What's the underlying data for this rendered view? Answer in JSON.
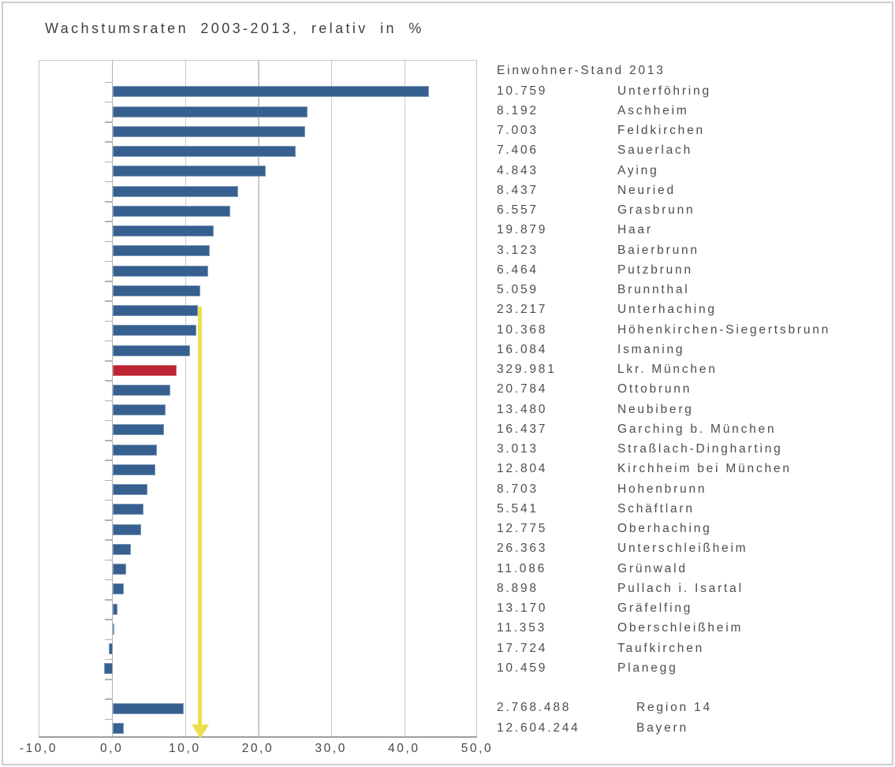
{
  "chart_data": {
    "type": "bar",
    "orientation": "horizontal",
    "title": "Wachstumsraten 2003-2013, relativ in %",
    "legend_header": "Einwohner-Stand 2013",
    "unit": "%",
    "x_axis": {
      "min": -10,
      "max": 50,
      "tick_step": 10,
      "tick_labels": [
        "-10,0",
        "0,0",
        "10,0",
        "20,0",
        "30,0",
        "40,0",
        "50,0"
      ],
      "grid": true
    },
    "rows": [
      {
        "name": "Unterföhring",
        "population": "10.759",
        "value": 43.3
      },
      {
        "name": "Aschheim",
        "population": "8.192",
        "value": 26.7
      },
      {
        "name": "Feldkirchen",
        "population": "7.003",
        "value": 26.4
      },
      {
        "name": "Sauerlach",
        "population": "7.406",
        "value": 25.1
      },
      {
        "name": "Aying",
        "population": "4.843",
        "value": 21.0
      },
      {
        "name": "Neuried",
        "population": "8.437",
        "value": 17.2
      },
      {
        "name": "Grasbrunn",
        "population": "6.557",
        "value": 16.1
      },
      {
        "name": "Haar",
        "population": "19.879",
        "value": 13.9
      },
      {
        "name": "Baierbrunn",
        "population": "3.123",
        "value": 13.3
      },
      {
        "name": "Putzbrunn",
        "population": "6.464",
        "value": 13.1
      },
      {
        "name": "Brunnthal",
        "population": "5.059",
        "value": 12.0
      },
      {
        "name": "Unterhaching",
        "population": "23.217",
        "value": 11.7
      },
      {
        "name": "Höhenkirchen-Siegertsbrunn",
        "population": "10.368",
        "value": 11.5
      },
      {
        "name": "Ismaning",
        "population": "16.084",
        "value": 10.6
      },
      {
        "name": "Lkr. München",
        "population": "329.981",
        "value": 8.8,
        "highlight": true
      },
      {
        "name": "Ottobrunn",
        "population": "20.784",
        "value": 7.9
      },
      {
        "name": "Neubiberg",
        "population": "13.480",
        "value": 7.3
      },
      {
        "name": "Garching b. München",
        "population": "16.437",
        "value": 7.0
      },
      {
        "name": "Straßlach-Dingharting",
        "population": "3.013",
        "value": 6.1
      },
      {
        "name": "Kirchheim bei München",
        "population": "12.804",
        "value": 5.9
      },
      {
        "name": "Hohenbrunn",
        "population": "8.703",
        "value": 4.8
      },
      {
        "name": "Schäftlarn",
        "population": "5.541",
        "value": 4.2
      },
      {
        "name": "Oberhaching",
        "population": "12.775",
        "value": 3.9
      },
      {
        "name": "Unterschleißheim",
        "population": "26.363",
        "value": 2.5
      },
      {
        "name": "Grünwald",
        "population": "11.086",
        "value": 1.9
      },
      {
        "name": "Pullach i. Isartal",
        "population": "8.898",
        "value": 1.6
      },
      {
        "name": "Gräfelfing",
        "population": "13.170",
        "value": 0.7
      },
      {
        "name": "Oberschleißheim",
        "population": "11.353",
        "value": 0.2
      },
      {
        "name": "Taufkirchen",
        "population": "17.724",
        "value": -0.5
      },
      {
        "name": "Planegg",
        "population": "10.459",
        "value": -1.1
      }
    ],
    "aggregates": [
      {
        "name": "Region 14",
        "population": "2.768.488",
        "value": 9.8
      },
      {
        "name": "Bayern",
        "population": "12.604.244",
        "value": 1.5
      }
    ],
    "annotation_arrow": {
      "at_value": 11.7,
      "from_category": "Unterhaching",
      "direction": "down"
    },
    "colors": {
      "bar": "#36608F",
      "highlight_bar": "#BE2332",
      "arrow": "#EDDE4E"
    }
  }
}
